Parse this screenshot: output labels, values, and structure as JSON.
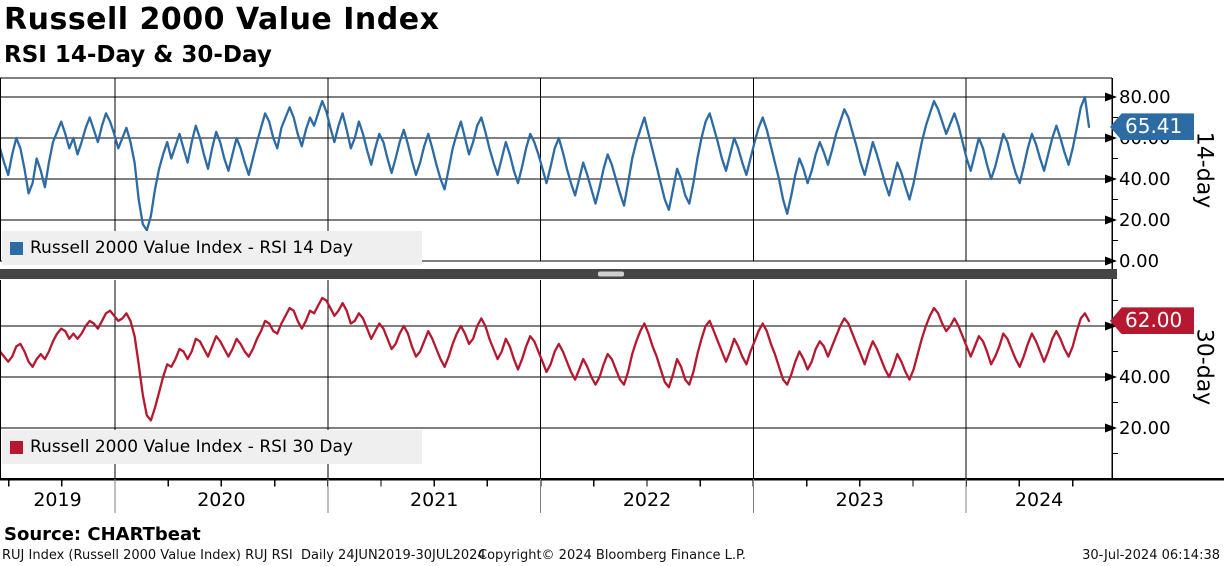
{
  "header": {
    "title": "Russell 2000 Value Index",
    "subtitle": "RSI 14-Day & 30-Day"
  },
  "footer": {
    "source": "Source: CHARTbeat",
    "left": "RUJ Index (Russell 2000 Value Index) RUJ RSI  Daily 24JUN2019-30JUL2024",
    "center": "Copyright© 2024 Bloomberg Finance L.P.",
    "right": "30-Jul-2024 06:14:38"
  },
  "x_axis": {
    "year_labels": [
      "2019",
      "2020",
      "2021",
      "2022",
      "2023",
      "2024"
    ],
    "range_label": "24JUN2019-30JUL2024"
  },
  "chart_data": [
    {
      "type": "line",
      "panel": "top",
      "name": "Russell 2000 Value Index - RSI 14 Day",
      "axis_label": "14-day",
      "color": "#2d6ba4",
      "tag_color": "#2d6ba4",
      "last_value": 65.41,
      "last_label": "65.41",
      "ylim": [
        0,
        89
      ],
      "ytick_values": [
        0,
        20,
        40,
        60,
        80
      ],
      "ytick_labels": [
        "0.00",
        "20.00",
        "40.00",
        "60.00",
        "80.00"
      ],
      "minor_tick_values": [
        10,
        30,
        50,
        70
      ],
      "legend_position": "bottom-left",
      "grid": true,
      "values": [
        55,
        48,
        42,
        52,
        60,
        55,
        45,
        33,
        38,
        50,
        44,
        36,
        48,
        58,
        63,
        68,
        62,
        55,
        60,
        52,
        58,
        65,
        70,
        64,
        58,
        66,
        72,
        68,
        62,
        55,
        60,
        65,
        58,
        48,
        30,
        18,
        15,
        22,
        35,
        45,
        52,
        58,
        50,
        56,
        62,
        55,
        48,
        58,
        66,
        60,
        52,
        45,
        55,
        63,
        58,
        50,
        44,
        52,
        60,
        55,
        48,
        42,
        50,
        58,
        65,
        72,
        68,
        60,
        55,
        65,
        70,
        75,
        70,
        62,
        56,
        64,
        70,
        66,
        72,
        78,
        73,
        65,
        58,
        66,
        72,
        64,
        55,
        60,
        68,
        62,
        54,
        47,
        55,
        62,
        58,
        50,
        43,
        50,
        58,
        64,
        57,
        49,
        42,
        48,
        56,
        62,
        55,
        47,
        40,
        35,
        45,
        55,
        62,
        68,
        60,
        52,
        58,
        66,
        70,
        63,
        55,
        48,
        42,
        50,
        58,
        52,
        44,
        38,
        46,
        55,
        62,
        58,
        52,
        45,
        38,
        46,
        55,
        60,
        53,
        45,
        38,
        32,
        40,
        48,
        42,
        35,
        28,
        36,
        45,
        52,
        47,
        40,
        33,
        27,
        38,
        50,
        58,
        64,
        70,
        62,
        54,
        46,
        38,
        30,
        25,
        35,
        45,
        40,
        32,
        28,
        38,
        50,
        60,
        68,
        72,
        65,
        58,
        50,
        44,
        52,
        60,
        55,
        48,
        42,
        50,
        58,
        65,
        70,
        64,
        56,
        48,
        40,
        30,
        23,
        32,
        42,
        50,
        45,
        38,
        44,
        52,
        58,
        53,
        47,
        54,
        62,
        68,
        74,
        70,
        63,
        56,
        48,
        42,
        50,
        58,
        52,
        45,
        38,
        32,
        40,
        48,
        43,
        36,
        30,
        38,
        48,
        58,
        66,
        72,
        78,
        74,
        68,
        62,
        67,
        72,
        66,
        58,
        50,
        44,
        52,
        60,
        55,
        47,
        40,
        46,
        54,
        62,
        58,
        50,
        43,
        38,
        46,
        55,
        62,
        57,
        50,
        44,
        52,
        60,
        66,
        60,
        53,
        47,
        55,
        65,
        75,
        80,
        65.41
      ]
    },
    {
      "type": "line",
      "panel": "bottom",
      "name": "Russell 2000 Value Index - RSI 30 Day",
      "axis_label": "30-day",
      "color": "#b5182f",
      "tag_color": "#b5182f",
      "last_value": 62.0,
      "last_label": "62.00",
      "ylim": [
        0,
        78
      ],
      "ytick_values": [
        20,
        40,
        60
      ],
      "ytick_labels": [
        "20.00",
        "40.00",
        "60.00"
      ],
      "minor_tick_values": [
        10,
        30,
        50,
        70
      ],
      "legend_position": "bottom-left",
      "grid": true,
      "values": [
        50,
        48,
        46,
        48,
        52,
        53,
        50,
        46,
        44,
        47,
        49,
        47,
        50,
        54,
        57,
        59,
        58,
        55,
        57,
        55,
        57,
        60,
        62,
        61,
        59,
        62,
        65,
        66,
        64,
        62,
        63,
        65,
        62,
        56,
        45,
        33,
        25,
        23,
        28,
        34,
        40,
        45,
        44,
        47,
        51,
        50,
        47,
        50,
        55,
        54,
        51,
        48,
        52,
        56,
        54,
        51,
        48,
        51,
        55,
        53,
        50,
        48,
        51,
        55,
        58,
        62,
        61,
        58,
        57,
        61,
        64,
        67,
        66,
        62,
        59,
        62,
        66,
        65,
        68,
        71,
        70,
        67,
        64,
        66,
        69,
        66,
        61,
        62,
        65,
        63,
        59,
        55,
        58,
        61,
        59,
        55,
        51,
        53,
        57,
        60,
        57,
        52,
        48,
        50,
        54,
        58,
        55,
        51,
        47,
        44,
        48,
        53,
        57,
        60,
        57,
        53,
        55,
        60,
        63,
        60,
        55,
        51,
        47,
        50,
        55,
        52,
        47,
        43,
        47,
        52,
        56,
        54,
        50,
        46,
        42,
        45,
        50,
        53,
        50,
        46,
        42,
        39,
        43,
        47,
        44,
        40,
        37,
        40,
        45,
        49,
        47,
        43,
        39,
        37,
        42,
        49,
        54,
        58,
        61,
        57,
        52,
        48,
        43,
        38,
        36,
        41,
        47,
        44,
        39,
        37,
        42,
        49,
        55,
        60,
        62,
        58,
        54,
        50,
        46,
        50,
        55,
        52,
        48,
        45,
        50,
        54,
        58,
        61,
        58,
        53,
        49,
        44,
        39,
        37,
        41,
        46,
        50,
        47,
        43,
        46,
        51,
        54,
        52,
        48,
        52,
        56,
        60,
        63,
        61,
        57,
        53,
        49,
        45,
        50,
        54,
        51,
        47,
        43,
        40,
        44,
        49,
        46,
        42,
        39,
        43,
        49,
        55,
        60,
        64,
        67,
        65,
        61,
        58,
        60,
        63,
        60,
        56,
        52,
        48,
        52,
        56,
        54,
        50,
        45,
        48,
        52,
        57,
        55,
        51,
        47,
        44,
        48,
        53,
        57,
        54,
        50,
        46,
        50,
        55,
        58,
        55,
        51,
        48,
        52,
        58,
        63,
        65,
        62
      ]
    }
  ]
}
